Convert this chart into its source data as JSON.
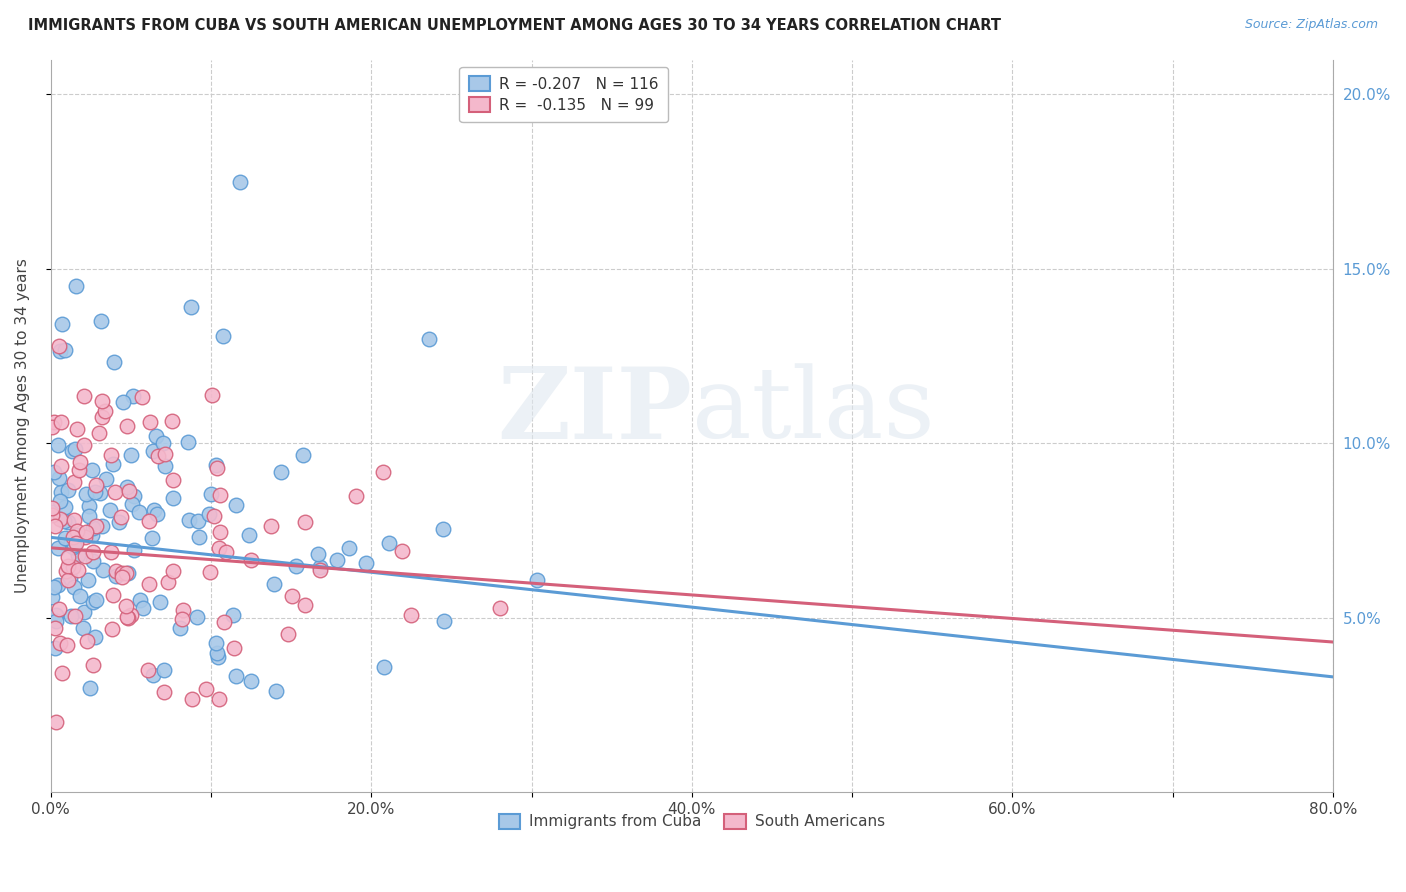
{
  "title": "IMMIGRANTS FROM CUBA VS SOUTH AMERICAN UNEMPLOYMENT AMONG AGES 30 TO 34 YEARS CORRELATION CHART",
  "source": "Source: ZipAtlas.com",
  "ylabel": "Unemployment Among Ages 30 to 34 years",
  "xlim": [
    0.0,
    0.8
  ],
  "ylim": [
    0.0,
    0.21
  ],
  "xtick_positions": [
    0.0,
    0.1,
    0.2,
    0.3,
    0.4,
    0.5,
    0.6,
    0.7,
    0.8
  ],
  "xtick_labels": [
    "0.0%",
    "",
    "20.0%",
    "",
    "40.0%",
    "",
    "60.0%",
    "",
    "80.0%"
  ],
  "ytick_positions": [
    0.05,
    0.1,
    0.15,
    0.2
  ],
  "ytick_labels": [
    "5.0%",
    "10.0%",
    "15.0%",
    "20.0%"
  ],
  "cuba_color": "#a8c8e8",
  "cuba_edge_color": "#5b9bd5",
  "sa_color": "#f4b8cc",
  "sa_edge_color": "#d4607a",
  "cuba_R": -0.207,
  "cuba_N": 116,
  "sa_R": -0.135,
  "sa_N": 99,
  "legend_label_cuba": "Immigrants from Cuba",
  "legend_label_sa": "South Americans",
  "watermark_zip": "ZIP",
  "watermark_atlas": "atlas",
  "cuba_line_start": 0.073,
  "cuba_line_end": 0.033,
  "sa_line_start": 0.07,
  "sa_line_end": 0.043
}
